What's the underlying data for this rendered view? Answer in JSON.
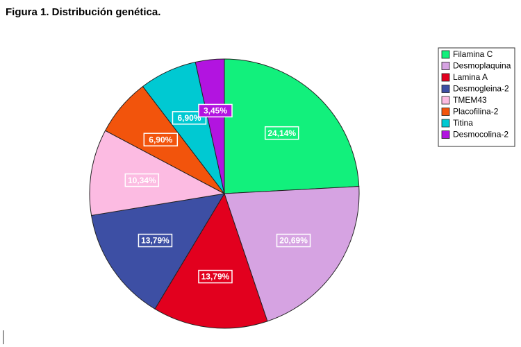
{
  "chart_data": {
    "type": "pie",
    "title": "Figura 1. Distribución genética.",
    "categories": [
      "Filamina C",
      "Desmoplaquina",
      "Lamina A",
      "Desmogleina-2",
      "TMEM43",
      "Placofilina-2",
      "Titina",
      "Desmocolina-2"
    ],
    "values": [
      24.14,
      20.69,
      13.79,
      13.79,
      10.34,
      6.9,
      6.9,
      3.45
    ],
    "value_labels": [
      "24,14%",
      "20,69%",
      "13,79%",
      "13,79%",
      "10,34%",
      "6,90%",
      "6,90%",
      "3,45%"
    ],
    "colors": [
      "#12f07c",
      "#d6a3e2",
      "#e2001e",
      "#3d4fa4",
      "#fcbbe2",
      "#f2540c",
      "#00c9d2",
      "#b214e0"
    ],
    "legend": "right"
  }
}
